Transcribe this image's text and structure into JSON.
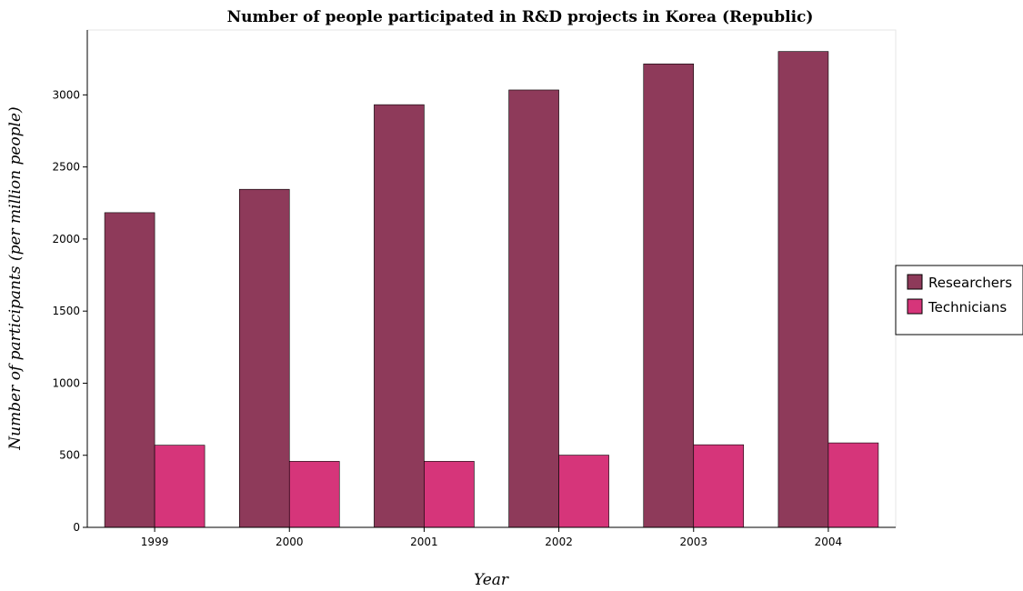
{
  "chart_data": {
    "type": "bar",
    "title": "Number of people participated in R&D projects in Korea (Republic)",
    "xlabel": "Year",
    "ylabel": "Number of participants (per million people)",
    "categories": [
      "1999",
      "2000",
      "2001",
      "2002",
      "2003",
      "2004"
    ],
    "series": [
      {
        "name": "Researchers",
        "color": "#8e3a5a",
        "values": [
          2183,
          2345,
          2932,
          3034,
          3215,
          3301
        ]
      },
      {
        "name": "Technicians",
        "color": "#d6357a",
        "values": [
          570,
          458,
          458,
          501,
          573,
          586
        ]
      }
    ],
    "ylim": [
      0,
      3450
    ],
    "yticks": [
      0,
      500,
      1000,
      1500,
      2000,
      2500,
      3000
    ],
    "grid": false,
    "legend_position": "right"
  }
}
